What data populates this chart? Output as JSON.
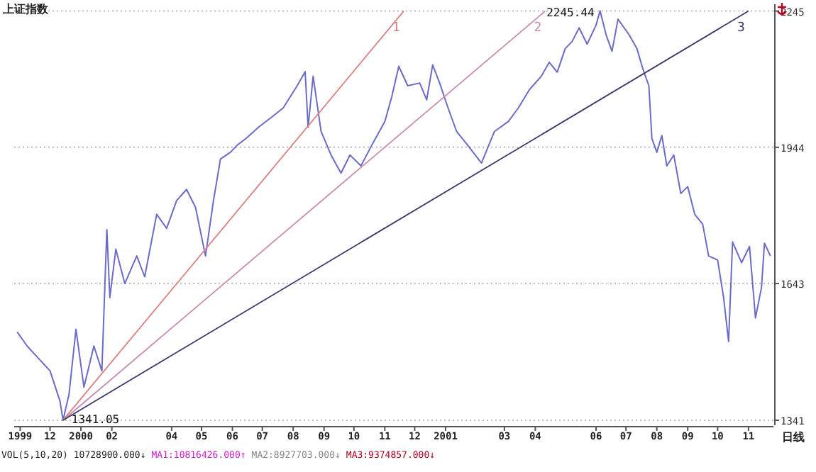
{
  "chart_data": {
    "type": "line",
    "title": "上证指数",
    "xlim": [
      "1999-10-26",
      "2001-11-26"
    ],
    "xticks": [
      {
        "value": "1999-11-01",
        "label": "1999"
      },
      {
        "value": "1999-12-01",
        "label": "12"
      },
      {
        "value": "2000-01-01",
        "label": "2000"
      },
      {
        "value": "2000-02-01",
        "label": "02"
      },
      {
        "value": "2000-04-01",
        "label": "04"
      },
      {
        "value": "2000-05-01",
        "label": "05"
      },
      {
        "value": "2000-06-01",
        "label": "06"
      },
      {
        "value": "2000-07-01",
        "label": "07"
      },
      {
        "value": "2000-08-01",
        "label": "08"
      },
      {
        "value": "2000-09-01",
        "label": "09"
      },
      {
        "value": "2000-10-01",
        "label": "10"
      },
      {
        "value": "2000-11-01",
        "label": "11"
      },
      {
        "value": "2000-12-01",
        "label": "12"
      },
      {
        "value": "2001-01-01",
        "label": "2001"
      },
      {
        "value": "2001-03-01",
        "label": "03"
      },
      {
        "value": "2001-04-01",
        "label": "04"
      },
      {
        "value": "2001-06-01",
        "label": "06"
      },
      {
        "value": "2001-07-01",
        "label": "07"
      },
      {
        "value": "2001-08-01",
        "label": "08"
      },
      {
        "value": "2001-09-01",
        "label": "09"
      },
      {
        "value": "2001-10-01",
        "label": "10"
      },
      {
        "value": "2001-11-01",
        "label": "11"
      }
    ],
    "ylim": [
      1330,
      2260
    ],
    "yticks": [
      1341,
      1643,
      1944,
      2245
    ],
    "grid": "y",
    "series": [
      {
        "color": "#6b6bc8",
        "x": [
          "1999-10-29",
          "1999-11-08",
          "1999-11-18",
          "1999-12-01",
          "1999-12-11",
          "1999-12-14",
          "1999-12-20",
          "1999-12-27",
          "2000-01-04",
          "2000-01-14",
          "2000-01-22",
          "2000-01-27",
          "2000-01-30",
          "2000-02-05",
          "2000-02-14",
          "2000-02-26",
          "2000-03-05",
          "2000-03-17",
          "2000-03-27",
          "2000-04-06",
          "2000-04-16",
          "2000-04-25",
          "2000-05-05",
          "2000-05-13",
          "2000-05-20",
          "2000-05-30",
          "2000-06-06",
          "2000-06-15",
          "2000-06-27",
          "2000-07-10",
          "2000-07-22",
          "2000-08-05",
          "2000-08-13",
          "2000-08-16",
          "2000-08-21",
          "2000-08-29",
          "2000-09-08",
          "2000-09-18",
          "2000-09-27",
          "2000-10-08",
          "2000-10-19",
          "2000-11-01",
          "2000-11-08",
          "2000-11-15",
          "2000-11-24",
          "2000-12-06",
          "2000-12-13",
          "2000-12-19",
          "2000-12-26",
          "2001-01-02",
          "2001-01-12",
          "2001-01-23",
          "2001-02-06",
          "2001-02-19",
          "2001-03-05",
          "2001-03-15",
          "2001-03-26",
          "2001-04-07",
          "2001-04-15",
          "2001-04-23",
          "2001-05-01",
          "2001-05-08",
          "2001-05-15",
          "2001-05-23",
          "2001-06-01",
          "2001-06-05",
          "2001-06-11",
          "2001-06-17",
          "2001-06-23",
          "2001-07-04",
          "2001-07-12",
          "2001-07-18",
          "2001-07-24",
          "2001-07-27",
          "2001-08-01",
          "2001-08-06",
          "2001-08-11",
          "2001-08-18",
          "2001-08-25",
          "2001-09-01",
          "2001-09-08",
          "2001-09-16",
          "2001-09-22",
          "2001-10-01",
          "2001-10-07",
          "2001-10-12",
          "2001-10-16",
          "2001-10-25",
          "2001-11-02",
          "2001-11-08",
          "2001-11-14",
          "2001-11-17",
          "2001-11-23"
        ],
        "values": [
          1536,
          1505,
          1481,
          1450,
          1383,
          1341.05,
          1398,
          1542,
          1414,
          1505,
          1450,
          1762,
          1612,
          1719,
          1643,
          1704,
          1658,
          1796,
          1765,
          1826,
          1851,
          1811,
          1704,
          1826,
          1918,
          1933,
          1949,
          1964,
          1988,
          2010,
          2031,
          2080,
          2111,
          1988,
          2101,
          1979,
          1927,
          1887,
          1927,
          1903,
          1949,
          2001,
          2056,
          2123,
          2080,
          2086,
          2049,
          2126,
          2086,
          2040,
          1979,
          1949,
          1909,
          1979,
          2001,
          2031,
          2071,
          2101,
          2132,
          2110,
          2162,
          2178,
          2208,
          2172,
          2214,
          2245.44,
          2193,
          2156,
          2227,
          2193,
          2162,
          2117,
          2080,
          1964,
          1933,
          1970,
          1903,
          1927,
          1842,
          1857,
          1796,
          1774,
          1704,
          1695,
          1612,
          1515,
          1735,
          1689,
          1725,
          1567,
          1634,
          1732,
          1704
        ]
      },
      {
        "name": "1",
        "color": "#d98080",
        "x": [
          "1999-12-14",
          "2000-11-20"
        ],
        "values": [
          1341.05,
          2245
        ]
      },
      {
        "name": "2",
        "color": "#c88ab0",
        "x": [
          "1999-12-14",
          "2001-04-11"
        ],
        "values": [
          1341.05,
          2245
        ]
      },
      {
        "name": "3",
        "color": "#3a3a6a",
        "x": [
          "1999-12-14",
          "2001-11-01"
        ],
        "values": [
          1341.05,
          2245
        ]
      }
    ],
    "annotations": [
      {
        "text": "2245.44",
        "x": "2001-06-05",
        "y": 2245.44
      },
      {
        "text": "1341.05",
        "x": "1999-12-14",
        "y": 1341.05
      },
      "日线",
      "VOL(5,10,20) 10728900.000↓",
      "MA1:10816426.000↑",
      "MA2:8927703.000↓",
      "MA3:9374857.000↓"
    ]
  }
}
